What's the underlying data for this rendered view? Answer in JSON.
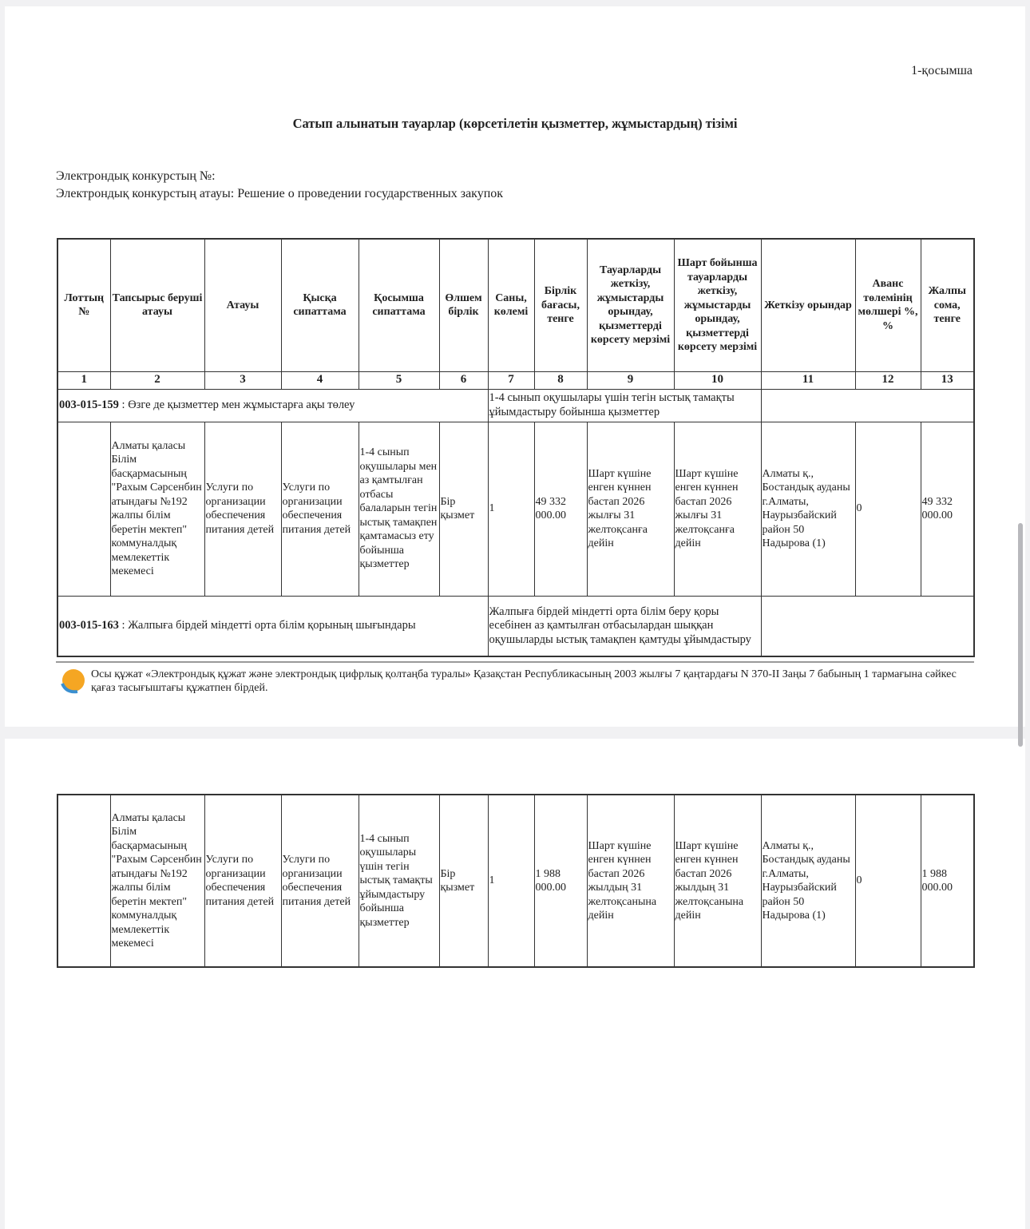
{
  "appendix_label": "1-қосымша",
  "title": "Сатып алынатын тауарлар (көрсетілетін қызметтер, жұмыстардың) тізімі",
  "contest_number_label": "Электрондық конкурстың №:",
  "contest_name_label": "Электрондық конкурстың атауы: Решение о проведении государственных закупок",
  "columns": [
    "Лоттың №",
    "Тапсырыс беруші атауы",
    "Атауы",
    "Қысқа сипаттама",
    "Қосымша сипаттама",
    "Өлшем бірлік",
    "Саны, көлемі",
    "Бірлік бағасы, тенге",
    "Тауарларды жеткізу, жұмыстарды орындау, қызметтерді көрсету мерзімі",
    "Шарт бойынша тауарларды жеткізу, жұмыстарды орындау, қызметтерді көрсету мерзімі",
    "Жеткізу орындар",
    "Аванс төлемінің мөлшері %, %",
    "Жалпы сома, тенге"
  ],
  "column_numbers": [
    "1",
    "2",
    "3",
    "4",
    "5",
    "6",
    "7",
    "8",
    "9",
    "10",
    "11",
    "12",
    "13"
  ],
  "groups": [
    {
      "code": "003-015-159",
      "name": " : Өзге де қызметтер мен жұмыстарға ақы төлеу",
      "description": "1-4 сынып оқушылары үшін тегін ыстық тамақты ұйымдастыру бойынша қызметтер",
      "rows": [
        [
          "",
          "Алматы қаласы Білім басқармасының \"Рахым Сәрсенбин атындағы №192 жалпы білім беретін мектеп\" коммуналдық мемлекеттік мекемесі",
          "Услуги по организации обеспечения питания детей",
          "Услуги по организации обеспечения питания детей",
          "1-4 сынып оқушылары мен аз қамтылған отбасы балаларын тегін ыстық тамақпен қамтамасыз ету бойынша қызметтер",
          "Бір қызмет",
          "1",
          "49 332 000.00",
          "Шарт күшіне енген күннен бастап 2026 жылғы 31 желтоқсанға дейін",
          "Шарт күшіне енген күннен бастап 2026 жылғы 31 желтоқсанға дейін",
          "Алматы қ., Бостандық ауданы г.Алматы, Наурызбайский район 50 Надырова (1)",
          "0",
          "49 332 000.00"
        ]
      ]
    },
    {
      "code": "003-015-163",
      "name": " : Жалпыға бірдей міндетті орта білім қорының шығындары",
      "description": "Жалпыға бірдей міндетті орта білім беру қоры есебінен аз қамтылған отбасылардан шыққан оқушыларды ыстық тамақпен қамтуды ұйымдастыру",
      "rows": [
        [
          "",
          "Алматы қаласы Білім басқармасының \"Рахым Сәрсенбин атындағы №192 жалпы білім беретін мектеп\" коммуналдық мемлекеттік мекемесі",
          "Услуги по организации обеспечения питания детей",
          "Услуги по организации обеспечения питания детей",
          "1-4 сынып оқушылары үшін тегін ыстық тамақты ұйымдастыру бойынша қызметтер",
          "Бір қызмет",
          "1",
          "1 988 000.00",
          "Шарт күшіне енген күннен бастап 2026 жылдың 31 желтоқсанына дейін",
          "Шарт күшіне енген күннен бастап 2026 жылдың 31 желтоқсанына дейін",
          "Алматы қ., Бостандық ауданы г.Алматы, Наурызбайский район 50 Надырова (1)",
          "0",
          "1 988 000.00"
        ]
      ]
    }
  ],
  "footer_text": "Осы құжат «Электрондық құжат және электрондық цифрлық қолтаңба туралы» Қазақстан Республикасының 2003 жылғы 7 қаңтардағы N 370-II Заңы 7 бабының 1 тармағына сәйкес қағаз тасығыштағы құжатпен бірдей.",
  "seal_icon": "egov-seal-icon"
}
